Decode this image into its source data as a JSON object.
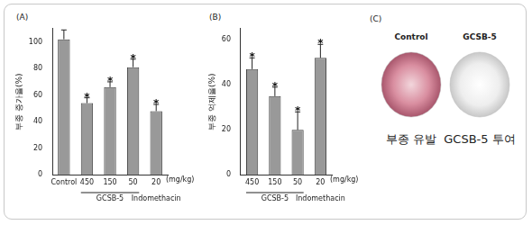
{
  "chart_data": [
    {
      "type": "bar",
      "panel": "(A)",
      "y_label": "부종 증가율(%)",
      "categories": [
        "Control",
        "450",
        "150",
        "50",
        "20"
      ],
      "values": [
        102,
        54,
        66,
        81,
        48
      ],
      "errors": [
        7,
        4,
        4,
        6,
        5
      ],
      "significance": [
        null,
        "*",
        "*",
        "*",
        "*"
      ],
      "groups": [
        {
          "label": "GCSB-5",
          "members": [
            "450",
            "150",
            "50"
          ]
        },
        {
          "label": "Indomethacin",
          "members": [
            "20"
          ]
        }
      ],
      "unit_label": "(mg/kg)",
      "color": "#999999",
      "ylim": [
        0,
        110
      ],
      "yticks": [
        0,
        20,
        40,
        60,
        80,
        100
      ],
      "grid": false
    },
    {
      "type": "bar",
      "panel": "(B)",
      "y_label": "부종 억제율(%)",
      "categories": [
        "450",
        "150",
        "50",
        "20"
      ],
      "values": [
        47,
        35,
        20,
        52
      ],
      "errors": [
        5,
        4,
        8,
        6
      ],
      "significance": [
        "*",
        "*",
        "*",
        "*"
      ],
      "groups": [
        {
          "label": "GCSB-5",
          "members": [
            "450",
            "150",
            "50"
          ]
        },
        {
          "label": "Indomethacin",
          "members": [
            "20"
          ]
        }
      ],
      "unit_label": "(mg/kg)",
      "color": "#999999",
      "ylim": [
        0,
        65
      ],
      "yticks": [
        0,
        20,
        40,
        60
      ],
      "grid": false
    }
  ],
  "image_panel": {
    "panel": "(C)",
    "columns": [
      {
        "title": "Control",
        "caption": "부종 유발"
      },
      {
        "title": "GCSB-5",
        "caption": "GCSB-5 투여"
      }
    ]
  }
}
